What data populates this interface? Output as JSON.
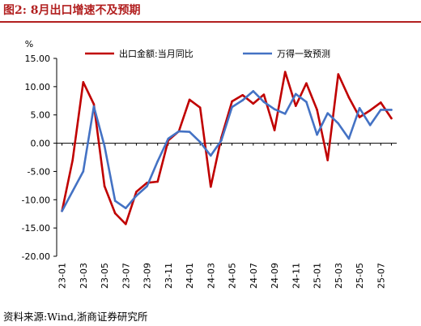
{
  "figure": {
    "title": "图2:  8月出口增速不及预期",
    "source": "资料来源:Wind,浙商证券研究所"
  },
  "colors": {
    "export_yoy": "#c00000",
    "expected": "#4472c4",
    "title": "#b22020"
  },
  "chart_data": {
    "type": "line",
    "title": "",
    "xlabel": "",
    "ylabel": "%",
    "ylim": [
      -20,
      15
    ],
    "yticks": [
      -20,
      -15,
      -10,
      -5,
      0,
      5,
      10,
      15
    ],
    "ytick_labels": [
      "-20.00",
      "-15.00",
      "-10.00",
      "-5.00",
      "0.00",
      "5.00",
      "10.00",
      "15.00"
    ],
    "grid": false,
    "legend_position": "top",
    "x": [
      "23-01",
      "23-02",
      "23-03",
      "23-04",
      "23-05",
      "23-06",
      "23-07",
      "23-08",
      "23-09",
      "23-10",
      "23-11",
      "23-12",
      "24-01",
      "24-02",
      "24-03",
      "24-04",
      "24-05",
      "24-06",
      "24-07",
      "24-08",
      "24-09",
      "24-10",
      "24-11",
      "24-12",
      "25-01",
      "25-02",
      "25-03",
      "25-04",
      "25-05",
      "25-06",
      "25-07",
      "25-08"
    ],
    "xtick_labels": [
      "23-01",
      "23-03",
      "23-05",
      "23-07",
      "23-09",
      "23-11",
      "24-01",
      "24-03",
      "24-05",
      "24-07",
      "24-09",
      "24-11",
      "25-01",
      "25-03",
      "25-05",
      "25-07"
    ],
    "series": [
      {
        "name": "出口金额:当月同比",
        "color": "#c00000",
        "values": [
          -12.0,
          -3.0,
          10.8,
          6.9,
          -7.6,
          -12.4,
          -14.3,
          -8.6,
          -7.0,
          -6.8,
          0.5,
          2.1,
          7.7,
          6.3,
          -7.7,
          1.0,
          7.4,
          8.5,
          7.0,
          8.6,
          2.3,
          12.6,
          6.6,
          10.6,
          5.9,
          -3.0,
          12.2,
          8.1,
          4.6,
          5.8,
          7.2,
          4.4
        ]
      },
      {
        "name": "万得一致预测",
        "color": "#4472c4",
        "values": [
          -12.0,
          -8.5,
          -5.0,
          6.5,
          -0.5,
          -10.2,
          -11.5,
          -9.3,
          -7.6,
          -3.2,
          0.8,
          2.1,
          2.0,
          0.2,
          -2.2,
          0.5,
          6.4,
          7.6,
          9.2,
          7.3,
          6.0,
          5.2,
          8.7,
          7.3,
          1.5,
          5.3,
          3.5,
          0.8,
          6.2,
          3.2,
          5.9,
          5.9
        ]
      }
    ]
  }
}
